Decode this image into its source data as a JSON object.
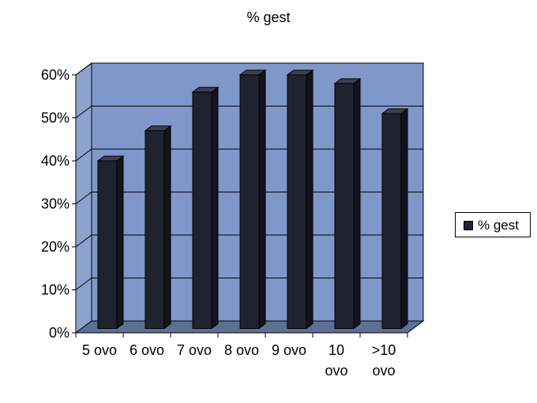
{
  "chart_data": {
    "type": "bar",
    "title": "% gest",
    "categories": [
      "5 ovo",
      "6 ovo",
      "7 ovo",
      "8 ovo",
      "9 ovo",
      "10 ovo",
      ">10 ovo"
    ],
    "category_lines": [
      [
        "5 ovo"
      ],
      [
        "6 ovo"
      ],
      [
        "7 ovo"
      ],
      [
        "8 ovo"
      ],
      [
        "9 ovo"
      ],
      [
        "10",
        "ovo"
      ],
      [
        ">10",
        "ovo"
      ]
    ],
    "series": [
      {
        "name": "% gest",
        "values": [
          39,
          46,
          55,
          59,
          59,
          57,
          50
        ]
      }
    ],
    "y_ticks": [
      "0%",
      "10%",
      "20%",
      "30%",
      "40%",
      "50%",
      "60%"
    ],
    "ylim": [
      0,
      60
    ],
    "grid": true,
    "legend_position": "right",
    "colors": {
      "bar": "#1f2330",
      "plot_background": "#7f97c9",
      "floor": "#5e6f95"
    }
  }
}
